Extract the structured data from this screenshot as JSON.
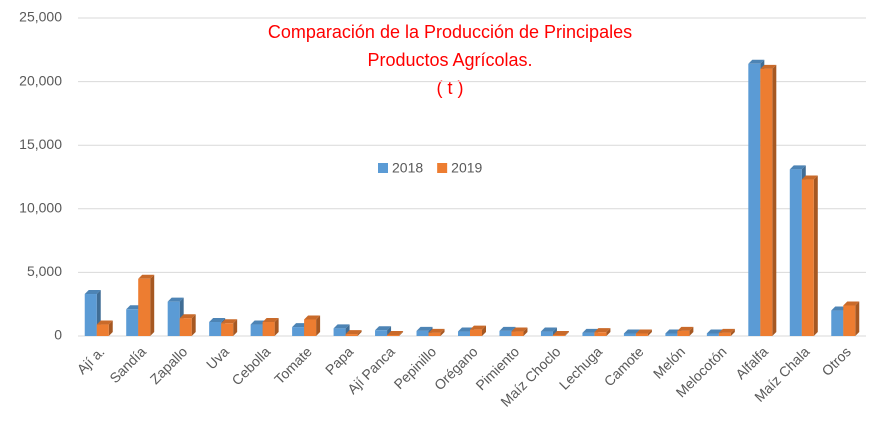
{
  "chart_data": {
    "type": "bar",
    "title_lines": [
      "Comparación de la Producción de Principales",
      "Productos Agrícolas.",
      "( t )"
    ],
    "categories": [
      "Ají a.",
      "Sandía",
      "Zapallo",
      "Uva",
      "Cebolla",
      "Tomate",
      "Papa",
      "Ají Panca",
      "Pepinillo",
      "Orégano",
      "Pimiento",
      "Maíz Choclo",
      "Lechuga",
      "Camote",
      "Melón",
      "Melocotón",
      "Alfalfa",
      "Maíz Chala",
      "Otros"
    ],
    "series": [
      {
        "name": "2018",
        "color": "#5b9bd5",
        "values": [
          3300,
          2100,
          2700,
          1100,
          900,
          700,
          600,
          450,
          400,
          350,
          400,
          350,
          250,
          200,
          200,
          200,
          21400,
          13100,
          2000
        ]
      },
      {
        "name": "2019",
        "color": "#ed7d31",
        "values": [
          900,
          4500,
          1400,
          1000,
          1100,
          1300,
          150,
          80,
          250,
          500,
          350,
          80,
          300,
          200,
          400,
          250,
          21000,
          12300,
          2400
        ]
      }
    ],
    "ylim": [
      0,
      25000
    ],
    "yticks": [
      0,
      {
        "value": 5000,
        "label": "5,000"
      },
      {
        "value": 10000,
        "label": "10,000"
      },
      {
        "value": 15000,
        "label": "15,000"
      },
      {
        "value": 20000,
        "label": "20,000"
      },
      {
        "value": 25000,
        "label": "25,000"
      }
    ],
    "grid": true
  }
}
